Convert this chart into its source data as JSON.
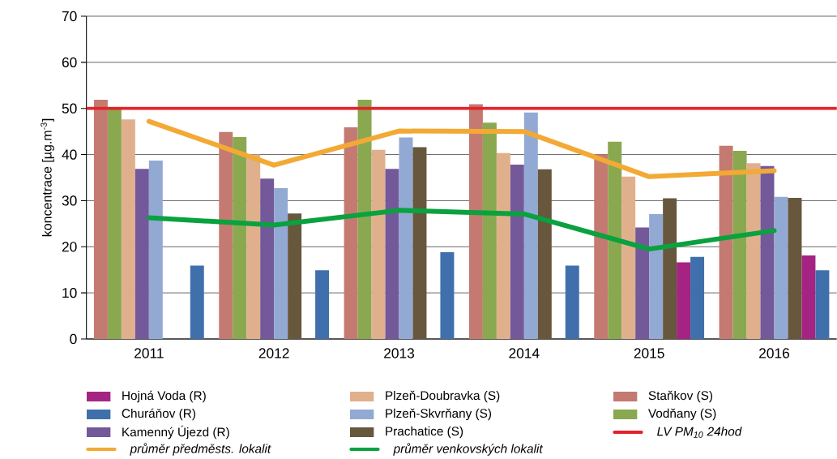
{
  "chart_data": {
    "type": "bar",
    "ylabel": "koncentrace [µg.m$^{-3}$]",
    "categories": [
      "2011",
      "2012",
      "2013",
      "2014",
      "2015",
      "2016"
    ],
    "ylim": [
      0,
      70
    ],
    "yticks": [
      0,
      10,
      20,
      30,
      40,
      50,
      60,
      70
    ],
    "grid": "y",
    "legend": "bottom",
    "series": [
      {
        "name": "Staňkov (S)",
        "color": "#c47a70",
        "values": [
          51.9,
          44.9,
          45.9,
          50.9,
          40.0,
          41.9
        ]
      },
      {
        "name": "Vodňany (S)",
        "color": "#8aa84f",
        "values": [
          49.8,
          43.8,
          51.9,
          46.9,
          42.8,
          40.8
        ]
      },
      {
        "name": "Plzeň-Doubravka (S)",
        "color": "#e0b08c",
        "values": [
          47.6,
          40.0,
          41.0,
          40.3,
          35.2,
          38.1
        ]
      },
      {
        "name": "Kamenný Újezd (R)",
        "color": "#73599a",
        "values": [
          36.9,
          34.8,
          36.9,
          37.8,
          24.2,
          37.5
        ]
      },
      {
        "name": "Plzeň-Skvrňany (S)",
        "color": "#92a9d3",
        "values": [
          38.7,
          32.7,
          43.7,
          49.1,
          27.1,
          30.8
        ]
      },
      {
        "name": "Prachatice (S)",
        "color": "#66573d",
        "values": [
          null,
          27.2,
          41.6,
          36.8,
          30.5,
          30.6
        ]
      },
      {
        "name": "Hojná Voda (R)",
        "color": "#a52383",
        "values": [
          null,
          null,
          null,
          null,
          16.6,
          18.1
        ]
      },
      {
        "name": "Churáňov (R)",
        "color": "#3f70ab",
        "values": [
          15.9,
          14.9,
          18.8,
          15.9,
          17.8,
          14.9
        ]
      },
      {
        "name": "průměr předměsts. lokalit",
        "type": "line",
        "color": "#f3a935",
        "values": [
          47.2,
          37.7,
          45.1,
          45.0,
          35.2,
          36.5
        ]
      },
      {
        "name": "průměr venkovských lokalit",
        "type": "line",
        "color": "#0aa13f",
        "values": [
          26.3,
          24.7,
          27.9,
          27.1,
          19.5,
          23.5
        ]
      }
    ],
    "ref_lines": [
      {
        "axis": "y",
        "value": 50,
        "label": "LV PM$_{10}$ 24hod",
        "color": "#e3232b"
      }
    ]
  }
}
